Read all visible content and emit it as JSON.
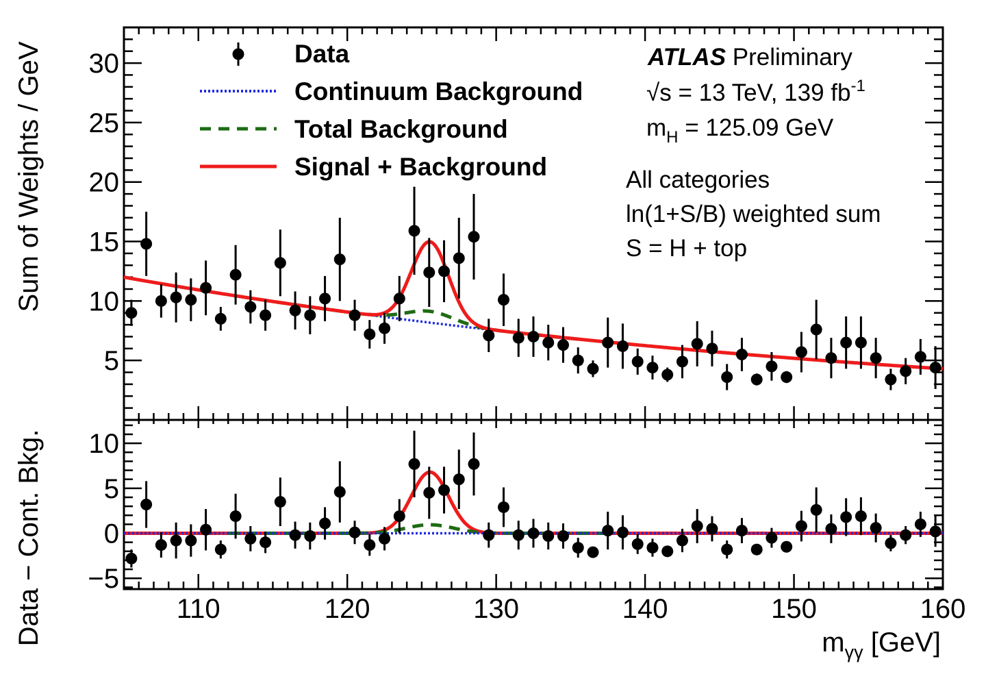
{
  "chart_data": {
    "type": "scatter",
    "x": [
      105.5,
      106.5,
      107.5,
      108.5,
      109.5,
      110.5,
      111.5,
      112.5,
      113.5,
      114.5,
      115.5,
      116.5,
      117.5,
      118.5,
      119.5,
      120.5,
      121.5,
      122.5,
      123.5,
      124.5,
      125.5,
      126.5,
      127.5,
      128.5,
      129.5,
      130.5,
      131.5,
      132.5,
      133.5,
      134.5,
      135.5,
      136.5,
      137.5,
      138.5,
      139.5,
      140.5,
      141.5,
      142.5,
      143.5,
      144.5,
      145.5,
      146.5,
      147.5,
      148.5,
      149.5,
      150.5,
      151.5,
      152.5,
      153.5,
      154.5,
      155.5,
      156.5,
      157.5,
      158.5,
      159.5
    ],
    "main_panel": {
      "ylabel": "Sum of Weights / GeV",
      "ylim": [
        0,
        33
      ],
      "yticks": [
        5,
        10,
        15,
        20,
        25,
        30
      ],
      "data_y": [
        9.0,
        14.8,
        10.0,
        10.3,
        10.1,
        11.1,
        8.5,
        12.2,
        9.5,
        8.8,
        13.2,
        9.2,
        8.8,
        10.2,
        13.5,
        8.8,
        7.2,
        7.7,
        10.2,
        15.9,
        12.4,
        12.5,
        13.6,
        15.4,
        7.1,
        10.1,
        6.9,
        7.0,
        6.5,
        6.3,
        5.0,
        4.3,
        6.5,
        6.2,
        4.9,
        4.4,
        3.8,
        4.9,
        6.4,
        6.0,
        3.6,
        5.5,
        3.4,
        4.5,
        3.6,
        5.7,
        7.6,
        5.2,
        6.5,
        6.5,
        5.2,
        3.4,
        4.1,
        5.3,
        4.4
      ],
      "data_err": [
        1.1,
        2.7,
        1.4,
        2.1,
        1.8,
        2.3,
        1.0,
        2.5,
        1.4,
        1.3,
        2.8,
        1.6,
        1.6,
        1.9,
        3.5,
        1.3,
        1.2,
        1.3,
        1.9,
        3.7,
        2.9,
        2.6,
        3.4,
        3.6,
        1.4,
        2.2,
        1.6,
        1.7,
        1.5,
        1.5,
        1.1,
        0.7,
        2.1,
        1.9,
        1.1,
        1.0,
        0.6,
        1.4,
        1.9,
        1.5,
        1.1,
        1.4,
        0.5,
        1.2,
        0.5,
        1.7,
        2.5,
        1.7,
        2.2,
        2.2,
        1.7,
        0.9,
        1.1,
        1.5,
        1.8
      ],
      "signal_plus_background_peak": {
        "mean": 125.55,
        "sigma": 1.25,
        "amplitude": 6.8
      },
      "total_background_extra": {
        "mean": 125.55,
        "sigma": 1.6,
        "amplitude": 0.95
      },
      "continuum_background": {
        "at_105": 12.0,
        "at_160": 4.3
      }
    },
    "ratio_panel": {
      "ylabel": "Data − Cont. Bkg.",
      "ylim": [
        -6.2,
        12.6
      ],
      "yticks": [
        -5,
        0,
        5,
        10
      ],
      "tick_labels": [
        "−5",
        "0",
        "5",
        "10"
      ],
      "data_y": [
        -2.8,
        3.2,
        -1.3,
        -0.8,
        -0.8,
        0.4,
        -1.8,
        1.9,
        -0.6,
        -1.0,
        3.5,
        -0.2,
        -0.3,
        1.1,
        4.6,
        0.1,
        -1.3,
        -0.6,
        1.9,
        7.7,
        4.5,
        4.8,
        6.0,
        7.7,
        -0.2,
        2.9,
        -0.2,
        0.0,
        -0.3,
        -0.3,
        -1.6,
        -2.1,
        0.3,
        0.1,
        -1.2,
        -1.6,
        -2.0,
        -0.8,
        0.8,
        0.5,
        -1.8,
        0.3,
        -1.8,
        -0.5,
        -1.5,
        0.8,
        2.6,
        0.5,
        1.8,
        1.9,
        0.6,
        -1.1,
        -0.2,
        1.0,
        0.2
      ],
      "data_err": [
        1.0,
        2.6,
        1.4,
        2.0,
        1.8,
        2.3,
        1.0,
        2.5,
        1.4,
        1.2,
        2.7,
        1.5,
        1.5,
        1.8,
        3.4,
        1.3,
        1.2,
        1.3,
        1.9,
        3.7,
        2.9,
        2.6,
        3.3,
        3.5,
        1.4,
        2.2,
        1.6,
        1.6,
        1.5,
        1.4,
        1.1,
        0.6,
        2.1,
        1.9,
        1.1,
        1.0,
        0.5,
        1.3,
        1.9,
        1.4,
        1.0,
        1.4,
        0.5,
        1.1,
        0.5,
        1.7,
        2.5,
        1.6,
        2.1,
        2.1,
        1.6,
        0.9,
        1.0,
        1.4,
        1.7
      ]
    },
    "xlim": [
      105,
      160
    ],
    "xticks": [
      110,
      120,
      130,
      140,
      150,
      160
    ],
    "xlabel_main": "m",
    "xlabel_sub": "γγ",
    "xlabel_unit": " [GeV]",
    "legend": {
      "placement": "top-left",
      "entries": [
        {
          "label": "Data",
          "style": "marker",
          "color": "#000000"
        },
        {
          "label": "Continuum Background",
          "style": "dotted",
          "color": "#1f2be0"
        },
        {
          "label": "Total Background",
          "style": "dashed",
          "color": "#1e6b14"
        },
        {
          "label": "Signal + Background",
          "style": "solid",
          "color": "#ef1c1c"
        }
      ]
    },
    "info": {
      "experiment": "ATLAS",
      "status": " Preliminary",
      "sqrt": "√",
      "energy": "s = 13 TeV, 139 fb",
      "energy_sup": "-1",
      "mass_main": "m",
      "mass_sub": "H",
      "mass_value": " = 125.09 GeV",
      "line1": "All categories",
      "line2": "ln(1+S/B) weighted sum",
      "line3": "S = H + top"
    },
    "colors": {
      "data": "#000000",
      "continuum": "#1f2be0",
      "total_background": "#1e6b14",
      "signal_plus_background": "#ef1c1c"
    }
  }
}
